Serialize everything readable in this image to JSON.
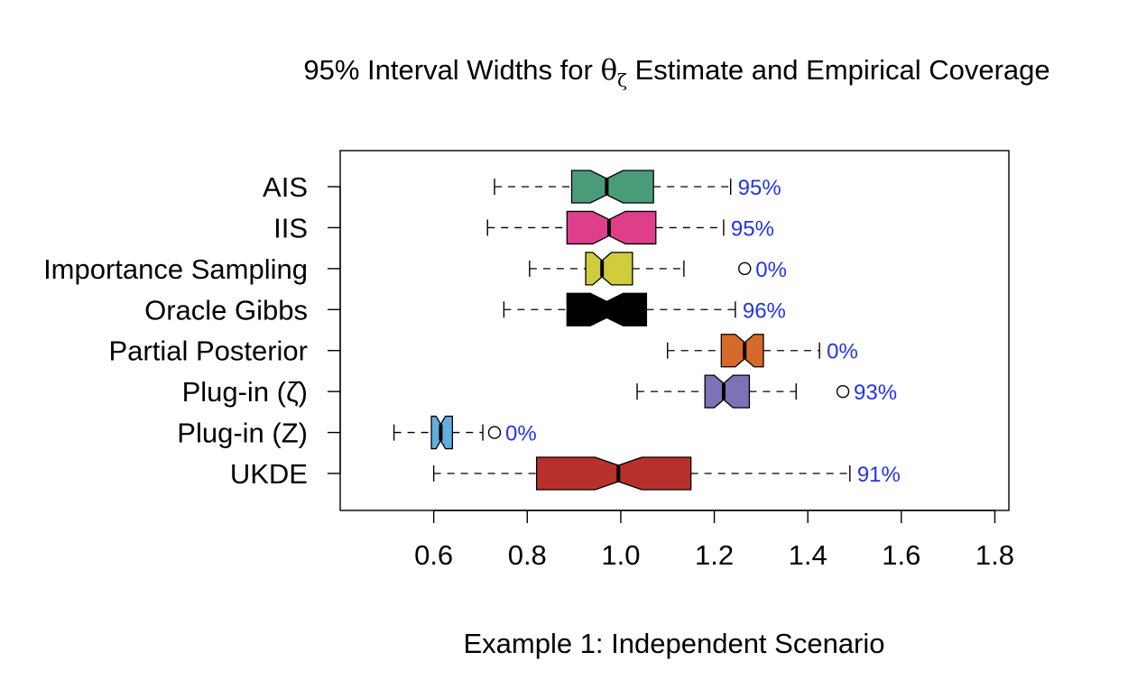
{
  "chart_data": {
    "type": "boxplot",
    "orientation": "horizontal",
    "notched": true,
    "title": {
      "prefix": "95% Interval Widths for ",
      "symbol": "θ",
      "subscript": "ζ",
      "suffix": " Estimate and Empirical Coverage"
    },
    "xlabel": "Example 1: Independent Scenario",
    "xlim": [
      0.4,
      1.83
    ],
    "xticks": [
      0.6,
      0.8,
      1.0,
      1.2,
      1.4,
      1.6,
      1.8
    ],
    "xtick_labels": [
      "0.6",
      "0.8",
      "1.0",
      "1.2",
      "1.4",
      "1.6",
      "1.8"
    ],
    "coverage_color": "#2233ee",
    "series": [
      {
        "label": "AIS",
        "whisker_low": 0.73,
        "q1": 0.895,
        "median": 0.97,
        "q3": 1.07,
        "whisker_high": 1.235,
        "notch_low": 0.935,
        "notch_high": 1.005,
        "outliers": [],
        "coverage": "95%",
        "color": "#4a9c78"
      },
      {
        "label": "IIS",
        "whisker_low": 0.715,
        "q1": 0.885,
        "median": 0.975,
        "q3": 1.075,
        "whisker_high": 1.22,
        "notch_low": 0.94,
        "notch_high": 1.01,
        "outliers": [],
        "coverage": "95%",
        "color": "#df3f8a"
      },
      {
        "label": "Importance Sampling",
        "whisker_low": 0.805,
        "q1": 0.925,
        "median": 0.96,
        "q3": 1.025,
        "whisker_high": 1.135,
        "notch_low": 0.94,
        "notch_high": 0.98,
        "outliers": [
          1.265
        ],
        "coverage": "0%",
        "color": "#cfcd3e"
      },
      {
        "label": "Oracle Gibbs",
        "whisker_low": 0.75,
        "q1": 0.885,
        "median": 0.97,
        "q3": 1.055,
        "whisker_high": 1.245,
        "notch_low": 0.935,
        "notch_high": 1.005,
        "outliers": [],
        "coverage": "96%",
        "color": "#000000"
      },
      {
        "label": "Partial Posterior",
        "whisker_low": 1.1,
        "q1": 1.215,
        "median": 1.265,
        "q3": 1.305,
        "whisker_high": 1.425,
        "notch_low": 1.245,
        "notch_high": 1.285,
        "outliers": [],
        "coverage": "0%",
        "color": "#d76a2a"
      },
      {
        "label": "Plug-in (ζ̂)",
        "whisker_low": 1.035,
        "q1": 1.18,
        "median": 1.22,
        "q3": 1.275,
        "whisker_high": 1.375,
        "notch_low": 1.2,
        "notch_high": 1.24,
        "outliers": [
          1.475
        ],
        "coverage": "93%",
        "color": "#7b73b5"
      },
      {
        "label": "Plug-in (Z)",
        "whisker_low": 0.515,
        "q1": 0.595,
        "median": 0.615,
        "q3": 0.64,
        "whisker_high": 0.705,
        "notch_low": 0.605,
        "notch_high": 0.625,
        "outliers": [
          0.73
        ],
        "coverage": "0%",
        "color": "#63aee0"
      },
      {
        "label": "UKDE",
        "whisker_low": 0.6,
        "q1": 0.82,
        "median": 0.995,
        "q3": 1.15,
        "whisker_high": 1.49,
        "notch_low": 0.945,
        "notch_high": 1.045,
        "outliers": [],
        "coverage": "91%",
        "color": "#b8302c"
      }
    ]
  }
}
